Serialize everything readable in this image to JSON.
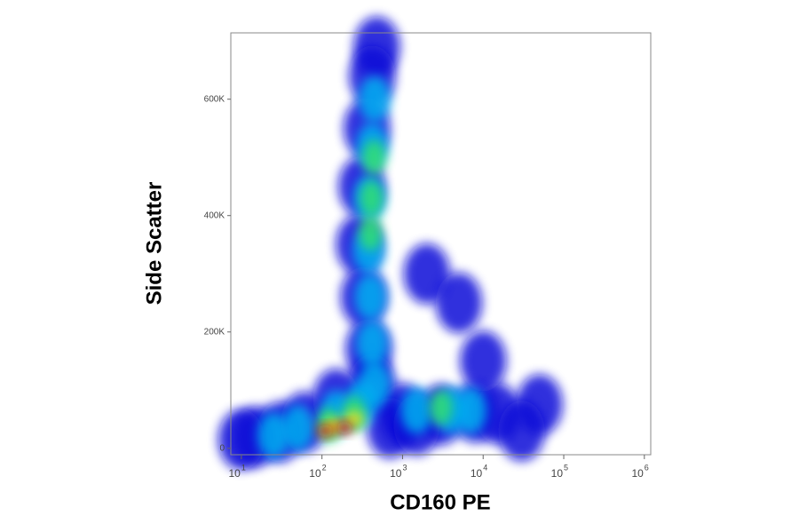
{
  "chart_data": {
    "type": "density",
    "xlabel": "CD160 PE",
    "ylabel": "Side Scatter",
    "xscale": "log",
    "xlim": [
      7.4,
      1200000
    ],
    "ylim": [
      -11000,
      714000
    ],
    "xticks": [
      {
        "value": 10,
        "label": "10",
        "exponent": "1"
      },
      {
        "value": 100,
        "label": "10",
        "exponent": "2"
      },
      {
        "value": 1000,
        "label": "10",
        "exponent": "3"
      },
      {
        "value": 10000,
        "label": "10",
        "exponent": "4"
      },
      {
        "value": 100000,
        "label": "10",
        "exponent": "5"
      },
      {
        "value": 1000000,
        "label": "10",
        "exponent": "6"
      }
    ],
    "yticks": [
      0,
      {
        "value": 200000,
        "label": "200K"
      },
      {
        "value": 400000,
        "label": "400K"
      },
      {
        "value": 600000,
        "label": "600K"
      }
    ],
    "series": [
      {
        "color": "#1010d8",
        "x": [
          480,
          420,
          360,
          310,
          290,
          330,
          380,
          420,
          1000,
          3000,
          8000,
          15000,
          15,
          30,
          60,
          150,
          2000,
          5000,
          10000,
          50000,
          30000,
          10,
          700,
          1500
        ],
        "y": [
          690000,
          640000,
          550000,
          450000,
          350000,
          260000,
          170000,
          110000,
          60000,
          58000,
          62000,
          60000,
          20000,
          28000,
          45000,
          85000,
          300000,
          250000,
          150000,
          75000,
          30000,
          15000,
          35000,
          40000
        ]
      },
      {
        "color": "#00b0f0",
        "x": [
          450,
          420,
          390,
          380,
          400,
          420,
          450,
          1500,
          4000,
          7000,
          50,
          150,
          300,
          25
        ],
        "y": [
          600000,
          520000,
          430000,
          340000,
          260000,
          180000,
          110000,
          65000,
          65000,
          65000,
          35000,
          60000,
          75000,
          22000
        ]
      },
      {
        "color": "#30e070",
        "x": [
          440,
          410,
          400,
          3000,
          120,
          250
        ],
        "y": [
          500000,
          430000,
          370000,
          70000,
          40000,
          60000
        ]
      },
      {
        "color": "#f0e020",
        "x": [
          140,
          250
        ],
        "y": [
          38000,
          50000
        ]
      },
      {
        "color": "#e01010",
        "x": [
          110,
          190
        ],
        "y": [
          30000,
          35000
        ]
      }
    ]
  }
}
